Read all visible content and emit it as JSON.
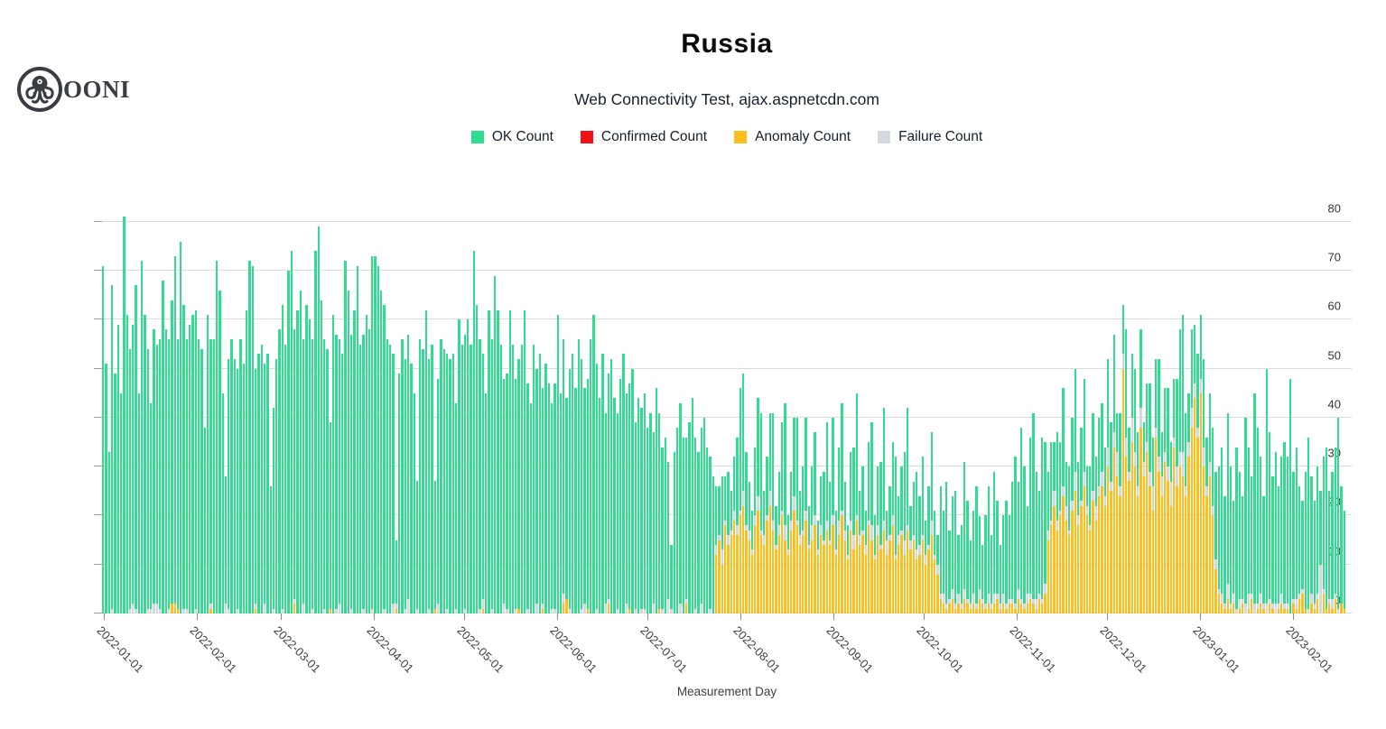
{
  "logo": {
    "text": "OONI"
  },
  "header": {
    "title": "Russia",
    "subtitle": "Web Connectivity Test, ajax.aspnetcdn.com"
  },
  "legend": [
    {
      "label": "OK Count",
      "color": "#2EDD8D"
    },
    {
      "label": "Confirmed Count",
      "color": "#F50D14"
    },
    {
      "label": "Anomaly Count",
      "color": "#FEBE1E"
    },
    {
      "label": "Failure Count",
      "color": "#D3D9DE"
    }
  ],
  "axes": {
    "x_title": "Measurement Day"
  },
  "chart_data": {
    "type": "bar",
    "stacked": true,
    "title": "Russia",
    "subtitle": "Web Connectivity Test, ajax.aspnetcdn.com",
    "xlabel": "Measurement Day",
    "ylabel": "",
    "grid": true,
    "legend_position": "top",
    "start_date": "2022-01-01",
    "end_date": "2023-02-20",
    "ylim": [
      0,
      82
    ],
    "y_ticks": [
      0,
      10,
      20,
      30,
      40,
      50,
      60,
      70,
      80
    ],
    "x_tick_labels": [
      "2022-01-01",
      "2022-02-01",
      "2022-03-01",
      "2022-04-01",
      "2022-05-01",
      "2022-06-01",
      "2022-07-01",
      "2022-08-01",
      "2022-09-01",
      "2022-10-01",
      "2022-11-01",
      "2022-12-01",
      "2023-01-01",
      "2023-02-01"
    ],
    "x_tick_day_index": [
      0,
      31,
      59,
      90,
      120,
      151,
      181,
      212,
      243,
      273,
      304,
      334,
      365,
      396
    ],
    "stack_order_bottom_to_top": [
      "Confirmed Count",
      "Anomaly Count",
      "Failure Count",
      "OK Count"
    ],
    "series": [
      {
        "name": "OK Count",
        "color": "#2EDD8D",
        "values": [
          71,
          51,
          33,
          66,
          49,
          59,
          45,
          81,
          61,
          53,
          57,
          66,
          45,
          72,
          61,
          53,
          42,
          56,
          53,
          55,
          68,
          58,
          55,
          62,
          71,
          55,
          76,
          62,
          55,
          59,
          61,
          61,
          56,
          54,
          38,
          61,
          54,
          56,
          72,
          66,
          45,
          26,
          51,
          56,
          52,
          49,
          56,
          51,
          62,
          72,
          71,
          48,
          53,
          55,
          49,
          53,
          26,
          41,
          52,
          58,
          62,
          55,
          70,
          74,
          55,
          62,
          66,
          54,
          63,
          60,
          55,
          74,
          79,
          64,
          55,
          54,
          38,
          61,
          56,
          54,
          53,
          72,
          66,
          56,
          62,
          71,
          55,
          56,
          61,
          58,
          72,
          73,
          71,
          66,
          62,
          56,
          55,
          51,
          13,
          49,
          56,
          51,
          54,
          51,
          45,
          26,
          56,
          54,
          62,
          51,
          55,
          26,
          46,
          56,
          54,
          52,
          52,
          53,
          42,
          60,
          55,
          56,
          60,
          55,
          74,
          63,
          55,
          50,
          45,
          62,
          55,
          69,
          62,
          55,
          46,
          48,
          62,
          55,
          47,
          51,
          55,
          62,
          46,
          43,
          55,
          48,
          53,
          44,
          51,
          47,
          42,
          46,
          61,
          45,
          52,
          41,
          49,
          53,
          46,
          56,
          51,
          44,
          47,
          56,
          61,
          50,
          44,
          53,
          39,
          46,
          52,
          44,
          40,
          48,
          53,
          43,
          46,
          50,
          38,
          44,
          41,
          44,
          38,
          41,
          35,
          46,
          40,
          33,
          36,
          28,
          13,
          33,
          38,
          41,
          36,
          33,
          39,
          44,
          35,
          33,
          36,
          40,
          34,
          31,
          28,
          12,
          10,
          15,
          9,
          13,
          8,
          11,
          18,
          25,
          24,
          15,
          10,
          8,
          14,
          20,
          24,
          9,
          12,
          16,
          22,
          8,
          11,
          18,
          25,
          7,
          10,
          16,
          21,
          9,
          13,
          19,
          8,
          12,
          17,
          6,
          10,
          14,
          20,
          12,
          20,
          8,
          15,
          22,
          10,
          6,
          14,
          18,
          25,
          9,
          13,
          7,
          16,
          21,
          8,
          12,
          17,
          23,
          6,
          10,
          15,
          20,
          8,
          13,
          18,
          24,
          7,
          11,
          16,
          10,
          16,
          7,
          12,
          18,
          9,
          6,
          22,
          17,
          25,
          14,
          19,
          23,
          12,
          16,
          26,
          20,
          13,
          17,
          24,
          15,
          11,
          18,
          22,
          14,
          25,
          19,
          12,
          16,
          21,
          17,
          24,
          30,
          22,
          35,
          28,
          18,
          32,
          38,
          26,
          21,
          33,
          29,
          12,
          16,
          10,
          18,
          14,
          20,
          9,
          13,
          17,
          21,
          11,
          15,
          19,
          8,
          12,
          16,
          10,
          14,
          14,
          10,
          18,
          12,
          20,
          8,
          15,
          10,
          22,
          9,
          13,
          17,
          11,
          16,
          8,
          12,
          18,
          10,
          14,
          20,
          9,
          13,
          16,
          8,
          12,
          18,
          25,
          28,
          15,
          10,
          16,
          12,
          15,
          13,
          18,
          10,
          14,
          16,
          18,
          25,
          30,
          22,
          35,
          28,
          19,
          33,
          26,
          21,
          38,
          30,
          24,
          43,
          36,
          28,
          22,
          48,
          34,
          26,
          31,
          24,
          28,
          33,
          30,
          48,
          26,
          31,
          22,
          18,
          28,
          35,
          24,
          21,
          26,
          15,
          27,
          33,
          22,
          26,
          30,
          39,
          24,
          20
        ]
      },
      {
        "name": "Confirmed Count",
        "color": "#F50D14",
        "all_zero": true,
        "values": []
      },
      {
        "name": "Anomaly Count",
        "color": "#FEBE1E",
        "values": [
          0,
          0,
          0,
          0,
          0,
          0,
          0,
          0,
          0,
          0,
          0,
          0,
          0,
          0,
          0,
          0,
          0,
          0,
          0,
          0,
          0,
          0,
          0,
          2,
          2,
          1,
          0,
          0,
          0,
          0,
          0,
          0,
          0,
          0,
          0,
          0,
          1,
          0,
          0,
          0,
          0,
          0,
          0,
          0,
          0,
          0,
          0,
          0,
          0,
          0,
          0,
          1,
          0,
          0,
          0,
          0,
          0,
          0,
          0,
          0,
          0,
          0,
          0,
          0,
          2,
          0,
          0,
          0,
          0,
          0,
          0,
          0,
          0,
          0,
          0,
          0,
          1,
          0,
          0,
          0,
          0,
          0,
          0,
          0,
          0,
          0,
          0,
          0,
          0,
          0,
          0,
          0,
          0,
          0,
          0,
          0,
          0,
          0,
          1,
          0,
          0,
          0,
          0,
          0,
          0,
          0,
          0,
          0,
          0,
          0,
          0,
          1,
          0,
          0,
          0,
          0,
          0,
          0,
          0,
          0,
          0,
          0,
          0,
          0,
          0,
          0,
          0,
          1,
          0,
          0,
          0,
          0,
          0,
          0,
          0,
          0,
          0,
          0,
          0,
          1,
          0,
          0,
          0,
          0,
          0,
          0,
          0,
          1,
          0,
          0,
          0,
          0,
          0,
          0,
          2,
          3,
          0,
          0,
          0,
          0,
          0,
          0,
          1,
          0,
          0,
          0,
          0,
          0,
          0,
          2,
          0,
          0,
          0,
          0,
          0,
          0,
          1,
          0,
          0,
          0,
          0,
          0,
          0,
          0,
          0,
          0,
          1,
          0,
          0,
          0,
          0,
          0,
          0,
          0,
          0,
          2,
          0,
          0,
          0,
          0,
          0,
          0,
          0,
          0,
          0,
          12,
          15,
          10,
          18,
          14,
          16,
          19,
          16,
          20,
          22,
          17,
          15,
          12,
          18,
          21,
          16,
          14,
          19,
          22,
          17,
          13,
          16,
          20,
          15,
          12,
          17,
          21,
          18,
          14,
          16,
          19,
          13,
          15,
          18,
          12,
          16,
          14,
          17,
          14,
          18,
          12,
          16,
          20,
          15,
          11,
          17,
          13,
          19,
          14,
          16,
          12,
          18,
          15,
          11,
          16,
          13,
          17,
          12,
          15,
          18,
          11,
          14,
          16,
          12,
          17,
          13,
          15,
          11,
          12,
          15,
          10,
          13,
          16,
          11,
          8,
          3,
          2,
          1,
          2,
          3,
          1,
          2,
          1,
          3,
          2,
          1,
          2,
          1,
          3,
          2,
          1,
          2,
          1,
          2,
          3,
          1,
          2,
          1,
          2,
          2,
          1,
          3,
          2,
          1,
          2,
          3,
          2,
          1,
          3,
          2,
          4,
          15,
          18,
          22,
          17,
          20,
          24,
          19,
          16,
          21,
          25,
          18,
          22,
          26,
          20,
          17,
          23,
          19,
          24,
          26,
          22,
          30,
          25,
          34,
          28,
          24,
          50,
          32,
          27,
          35,
          30,
          24,
          38,
          28,
          33,
          26,
          21,
          36,
          29,
          24,
          31,
          27,
          22,
          34,
          26,
          30,
          28,
          24,
          32,
          38,
          44,
          36,
          45,
          30,
          24,
          28,
          20,
          9,
          4,
          2,
          1,
          3,
          1,
          2,
          0,
          1,
          2,
          0,
          1,
          3,
          0,
          1,
          2,
          1,
          0,
          2,
          1,
          0,
          1,
          2,
          1,
          1,
          0,
          2,
          1,
          3,
          4,
          1,
          0,
          2,
          1,
          3,
          0,
          4,
          1,
          2,
          1,
          3,
          0,
          2,
          1
        ]
      },
      {
        "name": "Failure Count",
        "color": "#D3D9DE",
        "values": [
          0,
          0,
          0,
          1,
          0,
          0,
          0,
          0,
          0,
          1,
          2,
          1,
          0,
          0,
          0,
          1,
          1,
          2,
          2,
          1,
          0,
          0,
          1,
          0,
          0,
          0,
          0,
          1,
          1,
          0,
          0,
          1,
          0,
          0,
          0,
          0,
          1,
          0,
          0,
          0,
          0,
          2,
          1,
          0,
          0,
          1,
          0,
          0,
          0,
          0,
          0,
          1,
          0,
          0,
          2,
          0,
          0,
          1,
          0,
          0,
          1,
          0,
          0,
          0,
          1,
          0,
          0,
          2,
          0,
          0,
          1,
          0,
          0,
          0,
          1,
          0,
          0,
          0,
          1,
          2,
          0,
          0,
          0,
          1,
          0,
          0,
          0,
          1,
          0,
          0,
          1,
          0,
          0,
          0,
          1,
          0,
          0,
          2,
          1,
          0,
          0,
          1,
          3,
          0,
          0,
          1,
          0,
          0,
          0,
          1,
          0,
          0,
          2,
          0,
          0,
          1,
          0,
          0,
          1,
          0,
          0,
          1,
          0,
          0,
          0,
          0,
          1,
          2,
          0,
          0,
          1,
          0,
          0,
          0,
          2,
          1,
          0,
          0,
          1,
          0,
          0,
          0,
          1,
          0,
          0,
          2,
          0,
          1,
          0,
          0,
          1,
          1,
          0,
          0,
          2,
          0,
          1,
          0,
          0,
          0,
          1,
          2,
          0,
          0,
          0,
          1,
          0,
          0,
          2,
          1,
          0,
          0,
          1,
          0,
          0,
          2,
          0,
          0,
          1,
          0,
          1,
          1,
          0,
          0,
          2,
          0,
          0,
          1,
          0,
          3,
          1,
          0,
          0,
          2,
          0,
          1,
          0,
          0,
          1,
          0,
          2,
          0,
          0,
          1,
          0,
          2,
          1,
          3,
          1,
          2,
          1,
          2,
          2,
          1,
          3,
          1,
          2,
          1,
          2,
          3,
          1,
          2,
          1,
          3,
          2,
          1,
          2,
          1,
          3,
          1,
          2,
          3,
          1,
          2,
          1,
          2,
          1,
          3,
          2,
          1,
          2,
          1,
          2,
          1,
          2,
          1,
          3,
          1,
          2,
          1,
          2,
          3,
          1,
          2,
          1,
          2,
          1,
          3,
          1,
          2,
          1,
          2,
          3,
          1,
          2,
          1,
          2,
          1,
          3,
          1,
          2,
          1,
          2,
          2,
          1,
          2,
          1,
          3,
          1,
          2,
          1,
          2,
          1,
          1,
          2,
          1,
          2,
          1,
          2,
          1,
          1,
          2,
          1,
          2,
          1,
          1,
          2,
          1,
          2,
          1,
          1,
          2,
          1,
          1,
          1,
          1,
          2,
          1,
          1,
          2,
          1,
          1,
          2,
          1,
          1,
          2,
          2,
          1,
          3,
          2,
          1,
          2,
          3,
          1,
          2,
          4,
          2,
          1,
          3,
          2,
          1,
          2,
          3,
          2,
          3,
          2,
          4,
          2,
          3,
          5,
          2,
          3,
          4,
          2,
          5,
          3,
          2,
          4,
          3,
          2,
          3,
          5,
          2,
          3,
          4,
          2,
          3,
          5,
          2,
          4,
          3,
          5,
          2,
          3,
          4,
          3,
          2,
          3,
          4,
          2,
          3,
          2,
          2,
          1,
          2,
          1,
          3,
          1,
          2,
          1,
          2,
          1,
          2,
          3,
          1,
          2,
          1,
          2,
          1,
          2,
          1,
          1,
          2,
          1,
          2,
          1,
          1,
          0,
          1,
          2,
          1,
          1,
          0,
          1,
          2,
          1,
          1,
          10,
          1,
          0,
          1,
          2,
          1,
          1,
          0,
          0
        ]
      }
    ]
  }
}
